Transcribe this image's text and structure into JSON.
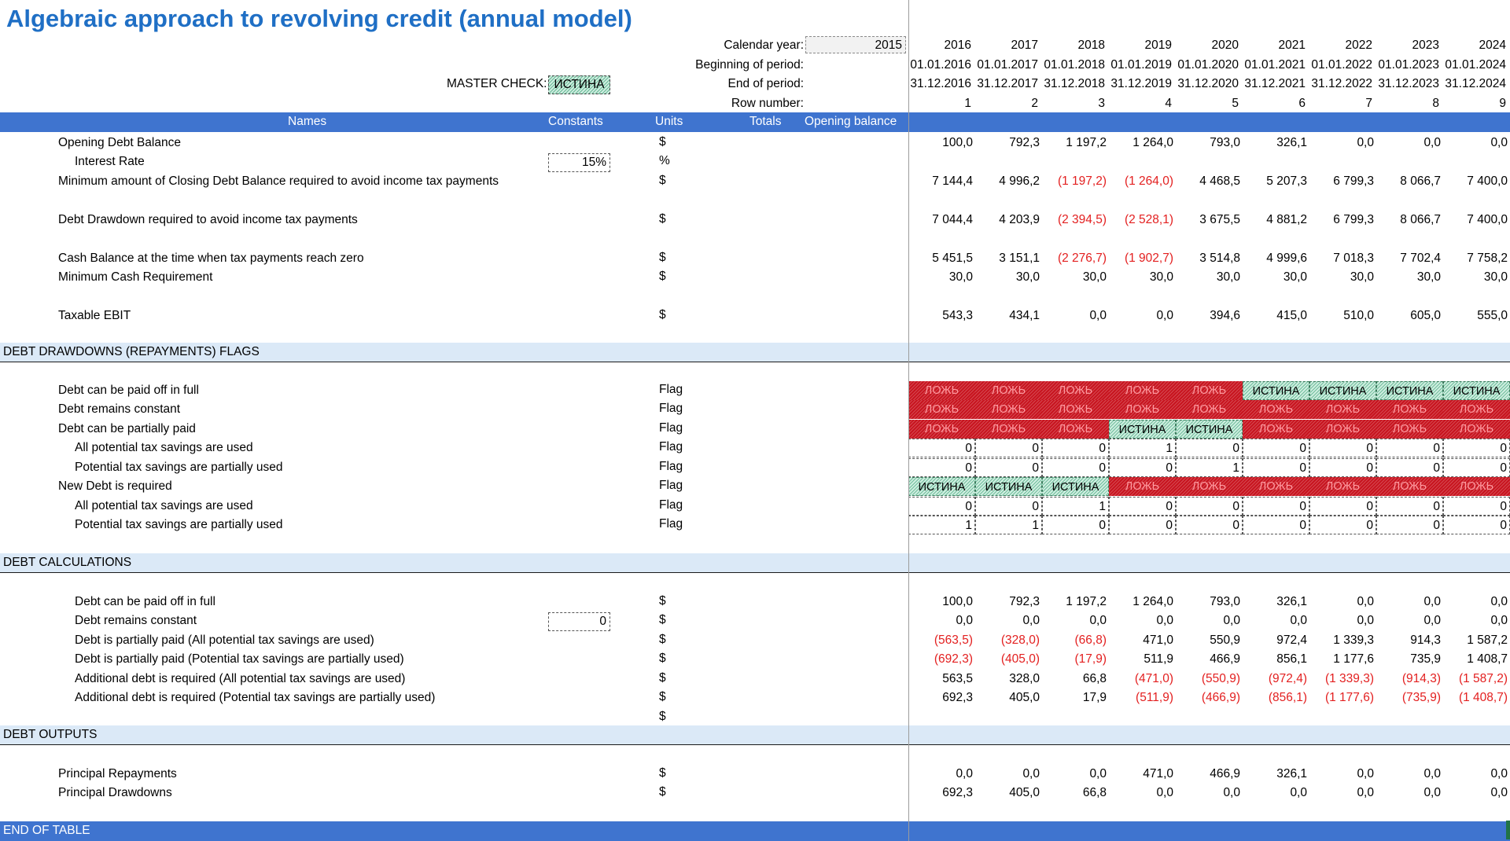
{
  "title": "Algebraic approach to revolving credit (annual model)",
  "header": {
    "calendar_year_label": "Calendar year:",
    "calendar_year_value": "2015",
    "beginning_label": "Beginning of period:",
    "end_label": "End of period:",
    "row_number_label": "Row number:",
    "master_check_label": "MASTER CHECK:",
    "master_check_value": "ИСТИНА",
    "years": [
      "2016",
      "2017",
      "2018",
      "2019",
      "2020",
      "2021",
      "2022",
      "2023",
      "2024"
    ],
    "beginning": [
      "01.01.2016",
      "01.01.2017",
      "01.01.2018",
      "01.01.2019",
      "01.01.2020",
      "01.01.2021",
      "01.01.2022",
      "01.01.2023",
      "01.01.2024"
    ],
    "end": [
      "31.12.2016",
      "31.12.2017",
      "31.12.2018",
      "31.12.2019",
      "31.12.2020",
      "31.12.2021",
      "31.12.2022",
      "31.12.2023",
      "31.12.2024"
    ],
    "row_numbers": [
      "1",
      "2",
      "3",
      "4",
      "5",
      "6",
      "7",
      "8",
      "9"
    ]
  },
  "columns": {
    "names": "Names",
    "constants": "Constants",
    "units": "Units",
    "totals": "Totals",
    "opening_balance": "Opening balance"
  },
  "sections": {
    "flags": "DEBT DRAWDOWNS (REPAYMENTS) FLAGS",
    "calcs": "DEBT CALCULATIONS",
    "outputs": "DEBT OUTPUTS",
    "end": "END OF TABLE"
  },
  "rows": [
    {
      "name": "Opening Debt Balance",
      "unit": "$",
      "values": [
        "100,0",
        "792,3",
        "1 197,2",
        "1 264,0",
        "793,0",
        "326,1",
        "0,0",
        "0,0",
        "0,0"
      ]
    },
    {
      "name": "Interest Rate",
      "unit": "%",
      "constant": "15%",
      "values": [
        "",
        "",
        "",
        "",
        "",
        "",
        "",
        "",
        ""
      ]
    },
    {
      "name": "Minimum amount of Closing Debt Balance required to avoid income tax payments",
      "unit": "$",
      "values": [
        "7 144,4",
        "4 996,2",
        "(1 197,2)",
        "(1 264,0)",
        "4 468,5",
        "5 207,3",
        "6 799,3",
        "8 066,7",
        "7 400,0"
      ]
    },
    {
      "name": "Debt Drawdown required to avoid income tax payments",
      "unit": "$",
      "values": [
        "7 044,4",
        "4 203,9",
        "(2 394,5)",
        "(2 528,1)",
        "3 675,5",
        "4 881,2",
        "6 799,3",
        "8 066,7",
        "7 400,0"
      ]
    },
    {
      "name": "Cash Balance at the time when tax payments reach zero",
      "unit": "$",
      "values": [
        "5 451,5",
        "3 151,1",
        "(2 276,7)",
        "(1 902,7)",
        "3 514,8",
        "4 999,6",
        "7 018,3",
        "7 702,4",
        "7 758,2"
      ]
    },
    {
      "name": "Minimum Cash Requirement",
      "unit": "$",
      "values": [
        "30,0",
        "30,0",
        "30,0",
        "30,0",
        "30,0",
        "30,0",
        "30,0",
        "30,0",
        "30,0"
      ]
    },
    {
      "name": "Taxable EBIT",
      "unit": "$",
      "values": [
        "543,3",
        "434,1",
        "0,0",
        "0,0",
        "394,6",
        "415,0",
        "510,0",
        "605,0",
        "555,0"
      ]
    }
  ],
  "flag_rows": [
    {
      "name": "Debt can be paid off in full",
      "unit": "Flag",
      "type": "bool",
      "values": [
        "ЛОЖЬ",
        "ЛОЖЬ",
        "ЛОЖЬ",
        "ЛОЖЬ",
        "ЛОЖЬ",
        "ИСТИНА",
        "ИСТИНА",
        "ИСТИНА",
        "ИСТИНА"
      ]
    },
    {
      "name": "Debt remains constant",
      "unit": "Flag",
      "type": "bool",
      "values": [
        "ЛОЖЬ",
        "ЛОЖЬ",
        "ЛОЖЬ",
        "ЛОЖЬ",
        "ЛОЖЬ",
        "ЛОЖЬ",
        "ЛОЖЬ",
        "ЛОЖЬ",
        "ЛОЖЬ"
      ]
    },
    {
      "name": "Debt can be partially paid",
      "unit": "Flag",
      "type": "bool",
      "values": [
        "ЛОЖЬ",
        "ЛОЖЬ",
        "ЛОЖЬ",
        "ИСТИНА",
        "ИСТИНА",
        "ЛОЖЬ",
        "ЛОЖЬ",
        "ЛОЖЬ",
        "ЛОЖЬ"
      ]
    },
    {
      "name": "All potential tax savings are used",
      "unit": "Flag",
      "type": "num",
      "values": [
        "0",
        "0",
        "0",
        "1",
        "0",
        "0",
        "0",
        "0",
        "0"
      ]
    },
    {
      "name": "Potential tax savings are partially used",
      "unit": "Flag",
      "type": "num",
      "values": [
        "0",
        "0",
        "0",
        "0",
        "1",
        "0",
        "0",
        "0",
        "0"
      ]
    },
    {
      "name": "New Debt is required",
      "unit": "Flag",
      "type": "bool",
      "values": [
        "ИСТИНА",
        "ИСТИНА",
        "ИСТИНА",
        "ЛОЖЬ",
        "ЛОЖЬ",
        "ЛОЖЬ",
        "ЛОЖЬ",
        "ЛОЖЬ",
        "ЛОЖЬ"
      ]
    },
    {
      "name": "All potential tax savings are used",
      "unit": "Flag",
      "type": "num",
      "values": [
        "0",
        "0",
        "1",
        "0",
        "0",
        "0",
        "0",
        "0",
        "0"
      ]
    },
    {
      "name": "Potential tax savings are partially used",
      "unit": "Flag",
      "type": "num",
      "values": [
        "1",
        "1",
        "0",
        "0",
        "0",
        "0",
        "0",
        "0",
        "0"
      ]
    }
  ],
  "calc_rows": [
    {
      "name": "Debt can be paid off in full",
      "unit": "$",
      "values": [
        "100,0",
        "792,3",
        "1 197,2",
        "1 264,0",
        "793,0",
        "326,1",
        "0,0",
        "0,0",
        "0,0"
      ]
    },
    {
      "name": "Debt remains constant",
      "unit": "$",
      "constant": "0",
      "values": [
        "0,0",
        "0,0",
        "0,0",
        "0,0",
        "0,0",
        "0,0",
        "0,0",
        "0,0",
        "0,0"
      ]
    },
    {
      "name": "Debt is partially paid (All potential tax savings are used)",
      "unit": "$",
      "values": [
        "(563,5)",
        "(328,0)",
        "(66,8)",
        "471,0",
        "550,9",
        "972,4",
        "1 339,3",
        "914,3",
        "1 587,2"
      ]
    },
    {
      "name": "Debt is partially paid (Potential tax savings are partially used)",
      "unit": "$",
      "values": [
        "(692,3)",
        "(405,0)",
        "(17,9)",
        "511,9",
        "466,9",
        "856,1",
        "1 177,6",
        "735,9",
        "1 408,7"
      ]
    },
    {
      "name": "Additional debt is required (All potential tax savings are used)",
      "unit": "$",
      "values": [
        "563,5",
        "328,0",
        "66,8",
        "(471,0)",
        "(550,9)",
        "(972,4)",
        "(1 339,3)",
        "(914,3)",
        "(1 587,2)"
      ]
    },
    {
      "name": "Additional debt is required (Potential tax savings are partially used)",
      "unit": "$",
      "values": [
        "692,3",
        "405,0",
        "17,9",
        "(511,9)",
        "(466,9)",
        "(856,1)",
        "(1 177,6)",
        "(735,9)",
        "(1 408,7)"
      ]
    },
    {
      "name": "",
      "unit": "$",
      "values": [
        "",
        "",
        "",
        "",
        "",
        "",
        "",
        "",
        ""
      ]
    }
  ],
  "output_rows": [
    {
      "name": "Principal Repayments",
      "unit": "$",
      "values": [
        "0,0",
        "0,0",
        "0,0",
        "471,0",
        "466,9",
        "326,1",
        "0,0",
        "0,0",
        "0,0"
      ]
    },
    {
      "name": "Principal Drawdowns",
      "unit": "$",
      "values": [
        "692,3",
        "405,0",
        "66,8",
        "0,0",
        "0,0",
        "0,0",
        "0,0",
        "0,0",
        "0,0"
      ]
    }
  ]
}
